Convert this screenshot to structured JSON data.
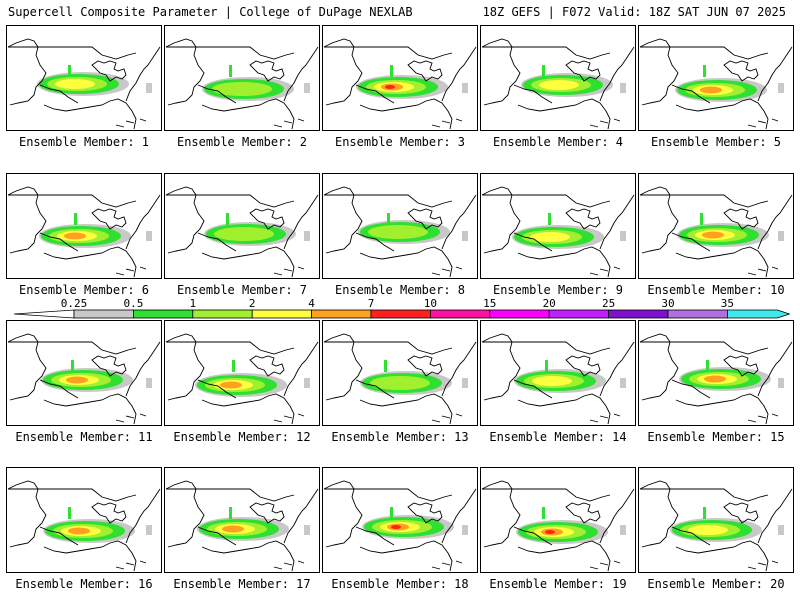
{
  "header": {
    "left": "Supercell Composite Parameter | College of DuPage NEXLAB",
    "right": "18Z GEFS | F072 Valid: 18Z SAT JUN 07 2025"
  },
  "scale": {
    "labels": [
      "0.25",
      "0.5",
      "1",
      "2",
      "4",
      "7",
      "10",
      "15",
      "20",
      "25",
      "30",
      "35"
    ],
    "colors": [
      "#c8c8c8",
      "#30e030",
      "#a0f030",
      "#ffff40",
      "#ffa020",
      "#ff2020",
      "#ff10a0",
      "#ff00ff",
      "#c020ff",
      "#8010d0",
      "#b070e0",
      "#40e8e8"
    ]
  },
  "panels": [
    {
      "caption": "Ensemble Member: 1",
      "intensity": 3
    },
    {
      "caption": "Ensemble Member: 2",
      "intensity": 2
    },
    {
      "caption": "Ensemble Member: 3",
      "intensity": 5
    },
    {
      "caption": "Ensemble Member: 4",
      "intensity": 3
    },
    {
      "caption": "Ensemble Member: 5",
      "intensity": 4
    },
    {
      "caption": "Ensemble Member: 6",
      "intensity": 4
    },
    {
      "caption": "Ensemble Member: 7",
      "intensity": 2
    },
    {
      "caption": "Ensemble Member: 8",
      "intensity": 2
    },
    {
      "caption": "Ensemble Member: 9",
      "intensity": 3
    },
    {
      "caption": "Ensemble Member: 10",
      "intensity": 4
    },
    {
      "caption": "Ensemble Member: 11",
      "intensity": 4
    },
    {
      "caption": "Ensemble Member: 12",
      "intensity": 4
    },
    {
      "caption": "Ensemble Member: 13",
      "intensity": 2
    },
    {
      "caption": "Ensemble Member: 14",
      "intensity": 3
    },
    {
      "caption": "Ensemble Member: 15",
      "intensity": 4
    },
    {
      "caption": "Ensemble Member: 16",
      "intensity": 4
    },
    {
      "caption": "Ensemble Member: 17",
      "intensity": 4
    },
    {
      "caption": "Ensemble Member: 18",
      "intensity": 5
    },
    {
      "caption": "Ensemble Member: 19",
      "intensity": 5
    },
    {
      "caption": "Ensemble Member: 20",
      "intensity": 3
    }
  ]
}
